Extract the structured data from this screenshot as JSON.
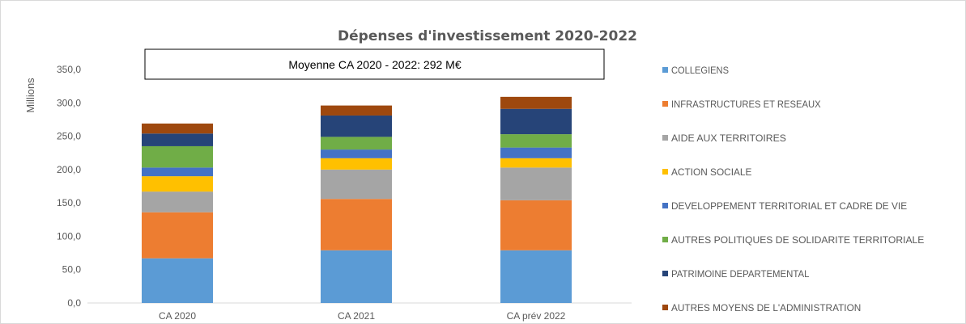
{
  "chart_data": {
    "type": "bar",
    "stacked": true,
    "title": "Dépenses d'investissement 2020-2022",
    "ylabel": "Millions",
    "xlabel": "",
    "ylim": [
      0,
      350
    ],
    "ytick_values": [
      0,
      50,
      100,
      150,
      200,
      250,
      300,
      350
    ],
    "ytick_labels": [
      "0,0",
      "50,0",
      "100,0",
      "150,0",
      "200,0",
      "250,0",
      "300,0",
      "350,0"
    ],
    "grid": false,
    "legend_position": "right",
    "annotation": "Moyenne CA 2020 - 2022: 292 M€",
    "categories": [
      "CA 2020",
      "CA 2021",
      "CA prév 2022"
    ],
    "series": [
      {
        "name": "COLLEGIENS",
        "color": "#5B9BD5",
        "values": [
          67,
          79,
          79
        ]
      },
      {
        "name": "INFRASTRUCTURES ET RESEAUX",
        "color": "#ED7D31",
        "values": [
          69,
          77,
          75
        ]
      },
      {
        "name": "AIDE AUX TERRITOIRES",
        "color": "#A5A5A5",
        "values": [
          31,
          44,
          49
        ]
      },
      {
        "name": "ACTION SOCIALE",
        "color": "#FFC000",
        "values": [
          23,
          17,
          14
        ]
      },
      {
        "name": "DEVELOPPEMENT TERRITORIAL ET CADRE DE VIE",
        "color": "#4472C4",
        "values": [
          13,
          13,
          16
        ]
      },
      {
        "name": "AUTRES POLITIQUES DE SOLIDARITE TERRITORIALE",
        "color": "#70AD47",
        "values": [
          32,
          19,
          20
        ]
      },
      {
        "name": "PATRIMOINE DEPARTEMENTAL",
        "color": "#264478",
        "values": [
          19,
          32,
          38
        ]
      },
      {
        "name": "AUTRES MOYENS DE L'ADMINISTRATION",
        "color": "#9E480E",
        "values": [
          15,
          15,
          18
        ]
      }
    ]
  }
}
